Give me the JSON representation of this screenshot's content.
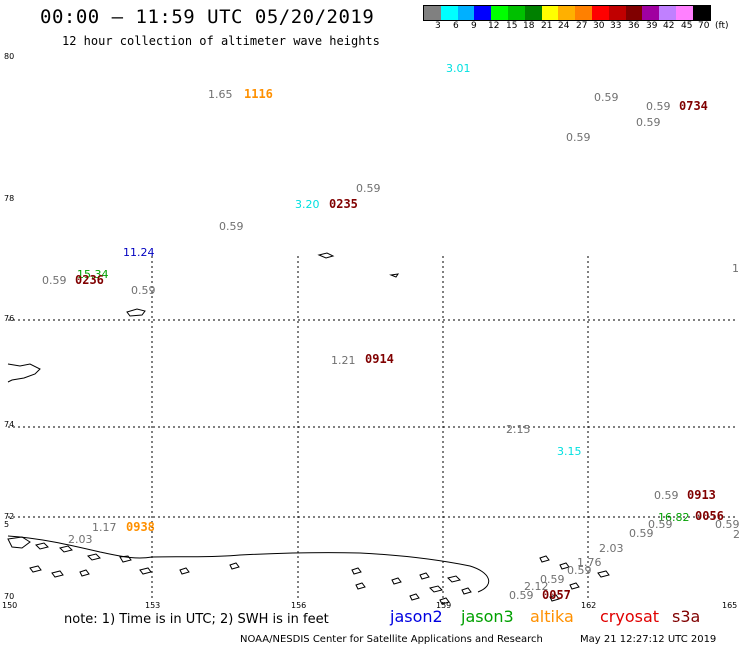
{
  "header": {
    "title": "00:00 — 11:59 UTC 05/20/2019",
    "subtitle": "12 hour collection of altimeter wave heights"
  },
  "color_scale": {
    "colors": [
      "#808080",
      "#00ffff",
      "#00b0ff",
      "#0000ff",
      "#00ff00",
      "#00c000",
      "#008000",
      "#ffff00",
      "#ffb000",
      "#ff8000",
      "#ff0000",
      "#c00000",
      "#800000",
      "#a000a0",
      "#c080ff",
      "#ff80ff",
      "#000000"
    ],
    "labels": [
      "3",
      "6",
      "9",
      "12",
      "15",
      "18",
      "21",
      "24",
      "27",
      "30",
      "33",
      "36",
      "39",
      "42",
      "45",
      "70",
      "(ft)"
    ]
  },
  "axes": {
    "lat_labels": [
      "80",
      "78",
      "76",
      "74",
      "72",
      "70"
    ],
    "lat_edge_label": "5",
    "lon_labels": [
      "150",
      "153",
      "156",
      "159",
      "162",
      "165"
    ],
    "right_edge_label": "1"
  },
  "observations": [
    {
      "swh": "3.01",
      "color": "#00e0e0"
    },
    {
      "swh": "1.65",
      "color": "#707070",
      "time": "1116",
      "time_color": "#ff9000"
    },
    {
      "swh": "0.59",
      "color": "#707070"
    },
    {
      "swh": "0.59",
      "color": "#707070",
      "time": "0734",
      "time_color": "#800000"
    },
    {
      "swh": "0.59",
      "color": "#707070"
    },
    {
      "swh": "0.59",
      "color": "#707070"
    },
    {
      "swh": "0.59",
      "color": "#707070"
    },
    {
      "swh": "3.20",
      "color": "#00e0e0",
      "time": "0235",
      "time_color": "#800000"
    },
    {
      "swh": "0.59",
      "color": "#707070"
    },
    {
      "swh": "11.24",
      "color": "#0000c0"
    },
    {
      "swh": "15.34",
      "color": "#00a000",
      "time": "0236",
      "time_color": "#800000"
    },
    {
      "swh": "0.59",
      "color": "#707070"
    },
    {
      "swh": "0.59",
      "color": "#707070"
    },
    {
      "swh": "1.21",
      "color": "#707070",
      "time": "0914",
      "time_color": "#800000"
    },
    {
      "swh": "2.15",
      "color": "#707070"
    },
    {
      "swh": "3.15",
      "color": "#00e0e0"
    },
    {
      "swh": "0.59",
      "color": "#707070",
      "time": "0913",
      "time_color": "#800000"
    },
    {
      "swh": "16.82",
      "color": "#00a000",
      "time": "0056",
      "time_color": "#800000"
    },
    {
      "swh": "0.59",
      "color": "#707070"
    },
    {
      "swh": "0.59",
      "color": "#707070"
    },
    {
      "swh": "0.59",
      "color": "#707070"
    },
    {
      "swh": "2",
      "color": "#707070"
    },
    {
      "swh": "1.17",
      "color": "#707070",
      "time": "0938",
      "time_color": "#ff9000"
    },
    {
      "swh": "2.03",
      "color": "#707070"
    },
    {
      "swh": "2.03",
      "color": "#707070"
    },
    {
      "swh": "1.76",
      "color": "#707070"
    },
    {
      "swh": "0.59",
      "color": "#707070"
    },
    {
      "swh": "0.59",
      "color": "#707070"
    },
    {
      "swh": "2.12",
      "color": "#707070"
    },
    {
      "swh": "0.59",
      "color": "#707070",
      "time": "0057",
      "time_color": "#800000"
    }
  ],
  "footer": {
    "note": "note: 1) Time is in UTC; 2) SWH is in feet",
    "legend": [
      {
        "label": "jason2",
        "color": "#0000e0"
      },
      {
        "label": "jason3",
        "color": "#00a000"
      },
      {
        "label": "altika",
        "color": "#ff9000"
      },
      {
        "label": "cryosat",
        "color": "#e00000"
      },
      {
        "label": "s3a",
        "color": "#800000"
      }
    ],
    "credit": "NOAA/NESDIS Center for Satellite Applications and Research",
    "timestamp": "May 21 12:27:12 UTC 2019"
  }
}
